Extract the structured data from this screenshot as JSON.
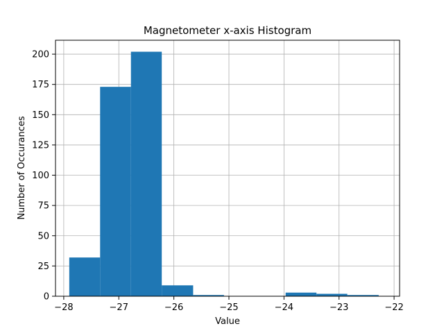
{
  "chart_data": {
    "type": "bar",
    "title": "Magnetometer x-axis Histogram",
    "xlabel": "Value",
    "ylabel": "Number of Occurances",
    "xlim": [
      -28.15,
      -21.9
    ],
    "ylim": [
      0,
      211.5
    ],
    "xticks": [
      -28,
      -27,
      -26,
      -25,
      -24,
      -23,
      -22
    ],
    "xtick_labels": [
      "−28",
      "−27",
      "−26",
      "−25",
      "−24",
      "−23",
      "−22"
    ],
    "yticks": [
      0,
      25,
      50,
      75,
      100,
      125,
      150,
      175,
      200
    ],
    "ytick_labels": [
      "0",
      "25",
      "50",
      "75",
      "100",
      "125",
      "150",
      "175",
      "200"
    ],
    "grid": true,
    "bins": [
      {
        "x0": -27.9,
        "x1": -27.34,
        "count": 32
      },
      {
        "x0": -27.34,
        "x1": -26.78,
        "count": 173
      },
      {
        "x0": -26.78,
        "x1": -26.22,
        "count": 202
      },
      {
        "x0": -26.22,
        "x1": -25.65,
        "count": 9
      },
      {
        "x0": -25.65,
        "x1": -25.09,
        "count": 1
      },
      {
        "x0": -25.09,
        "x1": -24.53,
        "count": 0
      },
      {
        "x0": -24.53,
        "x1": -23.97,
        "count": 0
      },
      {
        "x0": -23.97,
        "x1": -23.41,
        "count": 3
      },
      {
        "x0": -23.41,
        "x1": -22.85,
        "count": 2
      },
      {
        "x0": -22.85,
        "x1": -22.28,
        "count": 1
      }
    ],
    "colors": {
      "bar": "#1f77b4",
      "grid": "#b0b0b0",
      "axis": "#000000"
    }
  }
}
